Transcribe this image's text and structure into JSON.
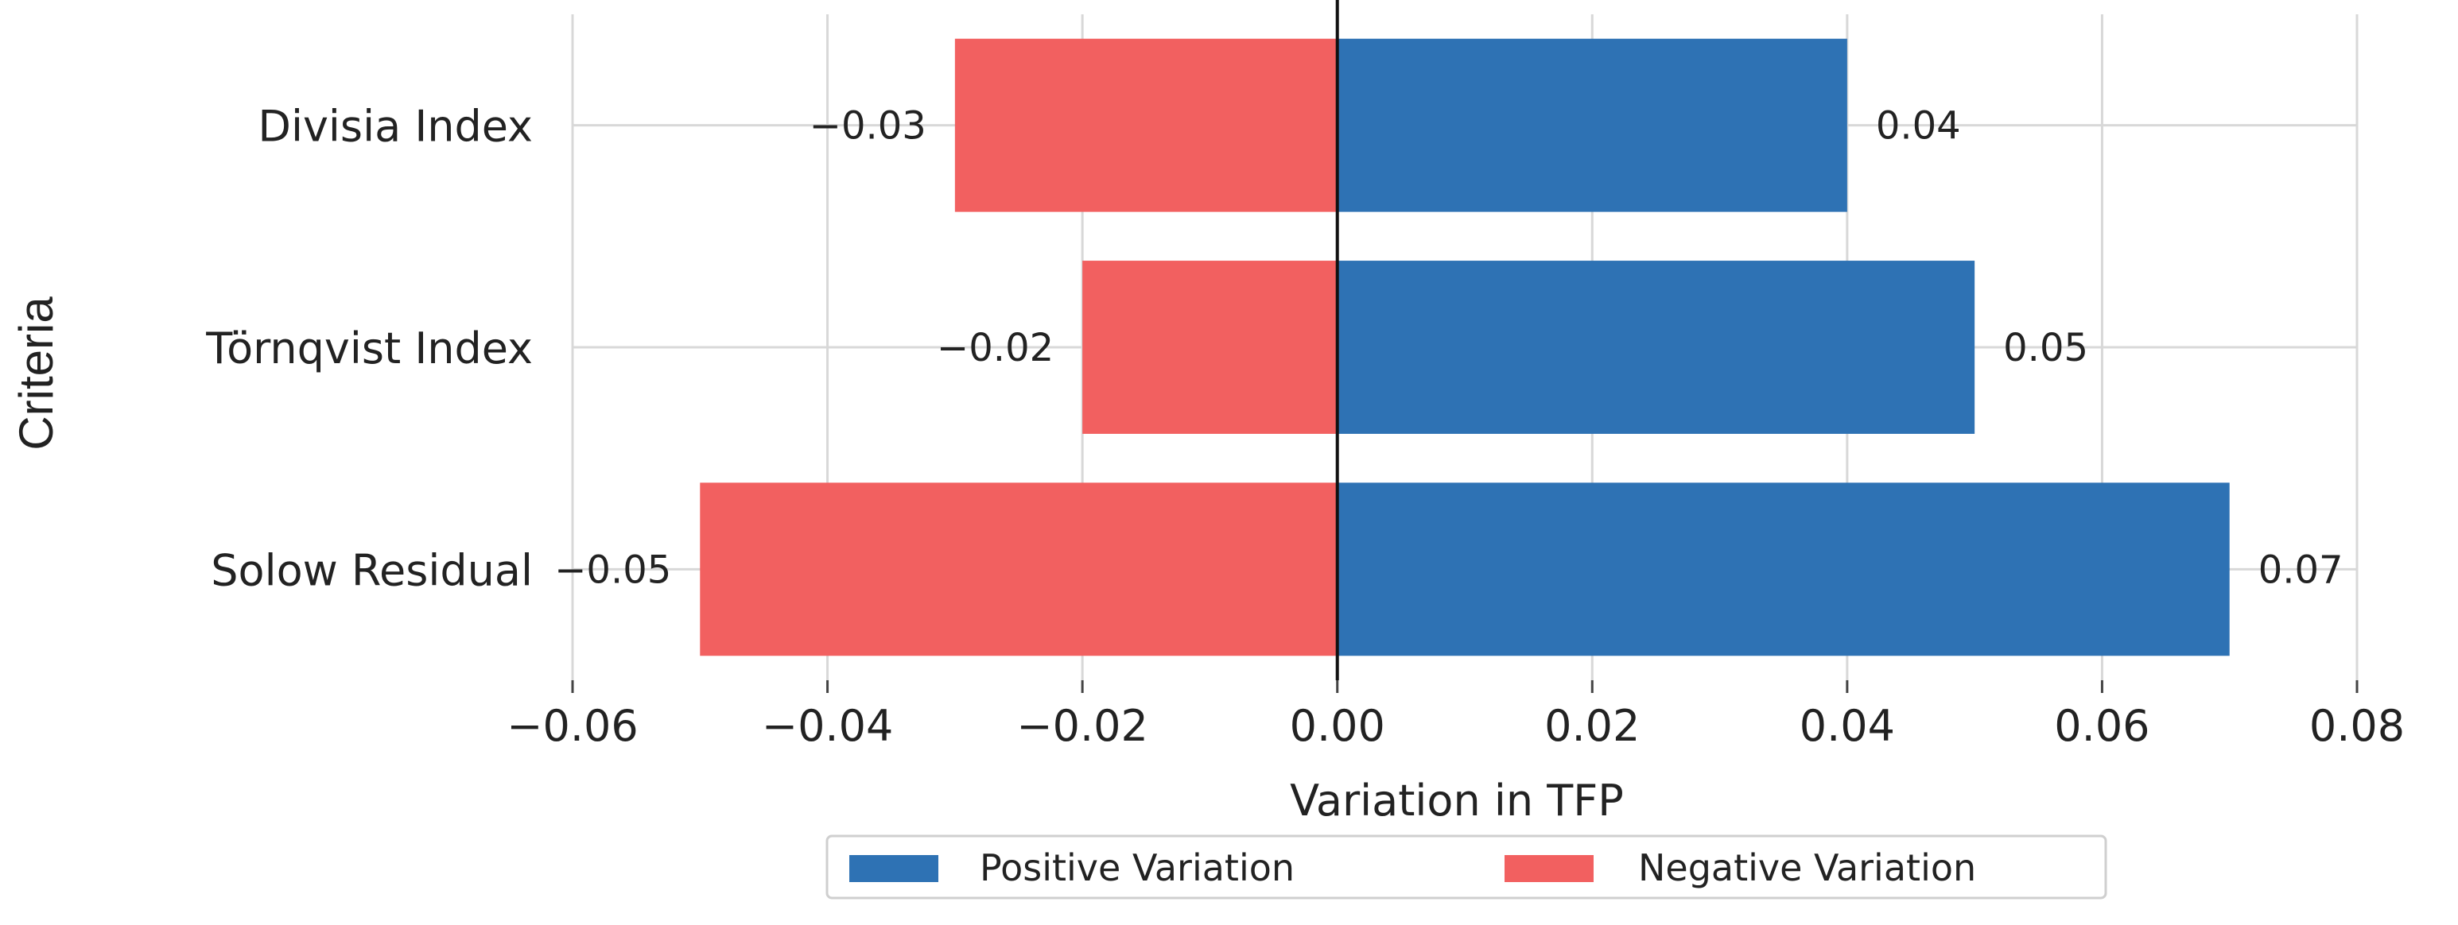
{
  "chart_data": {
    "type": "bar",
    "orientation": "horizontal",
    "categories": [
      "Divisia Index",
      "Törnqvist Index",
      "Solow Residual"
    ],
    "series": [
      {
        "name": "Positive Variation",
        "values": [
          0.04,
          0.05,
          0.07
        ],
        "color": "#2e72b4"
      },
      {
        "name": "Negative Variation",
        "values": [
          -0.03,
          -0.02,
          -0.05
        ],
        "color": "#f26060"
      }
    ],
    "value_labels": {
      "positive": [
        "0.04",
        "0.05",
        "0.07"
      ],
      "negative": [
        "−0.03",
        "−0.02",
        "−0.05"
      ]
    },
    "xlabel": "Variation in TFP",
    "ylabel": "Criteria",
    "xlim": [
      -0.06,
      0.08
    ],
    "xticks": [
      -0.06,
      -0.04,
      -0.02,
      0.0,
      0.02,
      0.04,
      0.06,
      0.08
    ],
    "xtick_labels": [
      "−0.06",
      "−0.04",
      "−0.02",
      "0.00",
      "0.02",
      "0.04",
      "0.06",
      "0.08"
    ],
    "grid": true,
    "zero_line": true,
    "legend": {
      "position": "bottom-center",
      "entries": [
        "Positive Variation",
        "Negative Variation"
      ]
    }
  }
}
